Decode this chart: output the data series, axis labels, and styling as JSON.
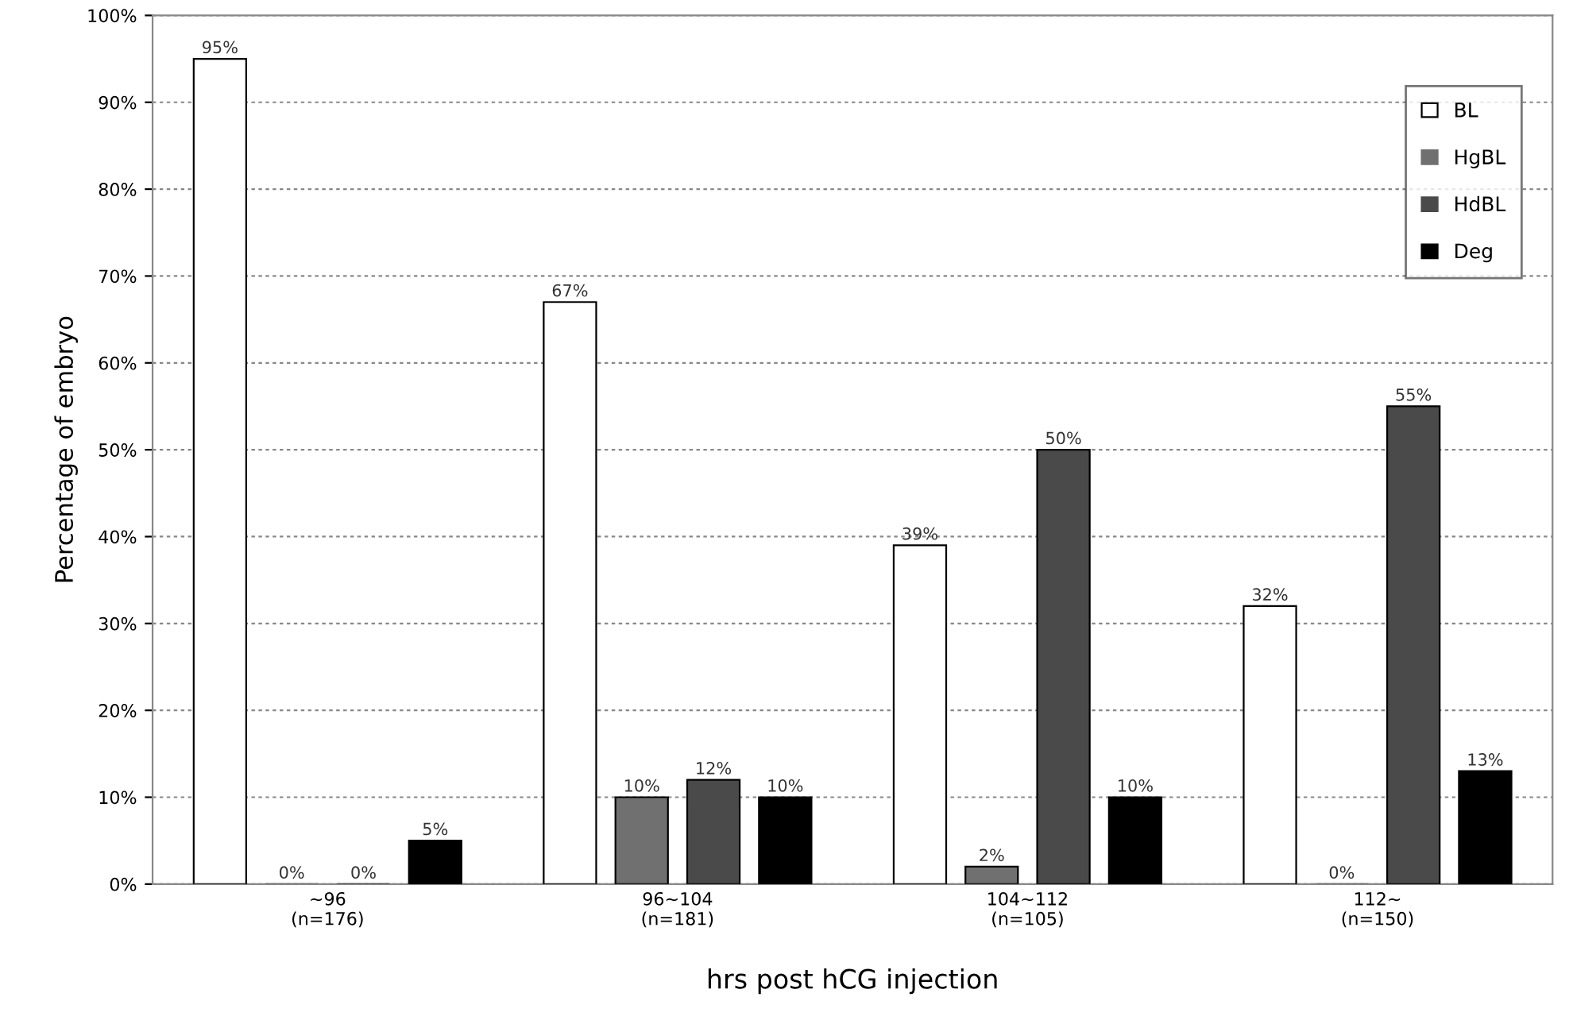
{
  "chart_data": {
    "type": "bar",
    "xlabel": "hrs post hCG injection",
    "ylabel": "Percentage of embryo",
    "categories": [
      "~96\n(n=176)",
      "96~104\n(n=181)",
      "104~112\n(n=105)",
      "112~\n(n=150)"
    ],
    "series": [
      {
        "name": "BL",
        "color": "#ffffff",
        "values": [
          95,
          67,
          39,
          32
        ],
        "value_labels": [
          "95%",
          "67%",
          "39%",
          "32%"
        ]
      },
      {
        "name": "HgBL",
        "color": "#707070",
        "values": [
          0,
          10,
          2,
          0
        ],
        "value_labels": [
          "0%",
          "10%",
          "2%",
          "0%"
        ]
      },
      {
        "name": "HdBL",
        "color": "#4a4a4a",
        "values": [
          0,
          12,
          50,
          55
        ],
        "value_labels": [
          "0%",
          "12%",
          "50%",
          "55%"
        ]
      },
      {
        "name": "Deg",
        "color": "#000000",
        "values": [
          5,
          10,
          10,
          13
        ],
        "value_labels": [
          "5%",
          "10%",
          "10%",
          "13%"
        ]
      }
    ],
    "ylim": [
      0,
      100
    ],
    "yticks": [
      {
        "value": 0,
        "label": "0%"
      },
      {
        "value": 10,
        "label": "10%"
      },
      {
        "value": 20,
        "label": "20%"
      },
      {
        "value": 30,
        "label": "30%"
      },
      {
        "value": 40,
        "label": "40%"
      },
      {
        "value": 50,
        "label": "50%"
      },
      {
        "value": 60,
        "label": "60%"
      },
      {
        "value": 70,
        "label": "70%"
      },
      {
        "value": 80,
        "label": "80%"
      },
      {
        "value": 90,
        "label": "90%"
      },
      {
        "value": 100,
        "label": "100%"
      }
    ],
    "grid": "y",
    "legend": "top right"
  }
}
